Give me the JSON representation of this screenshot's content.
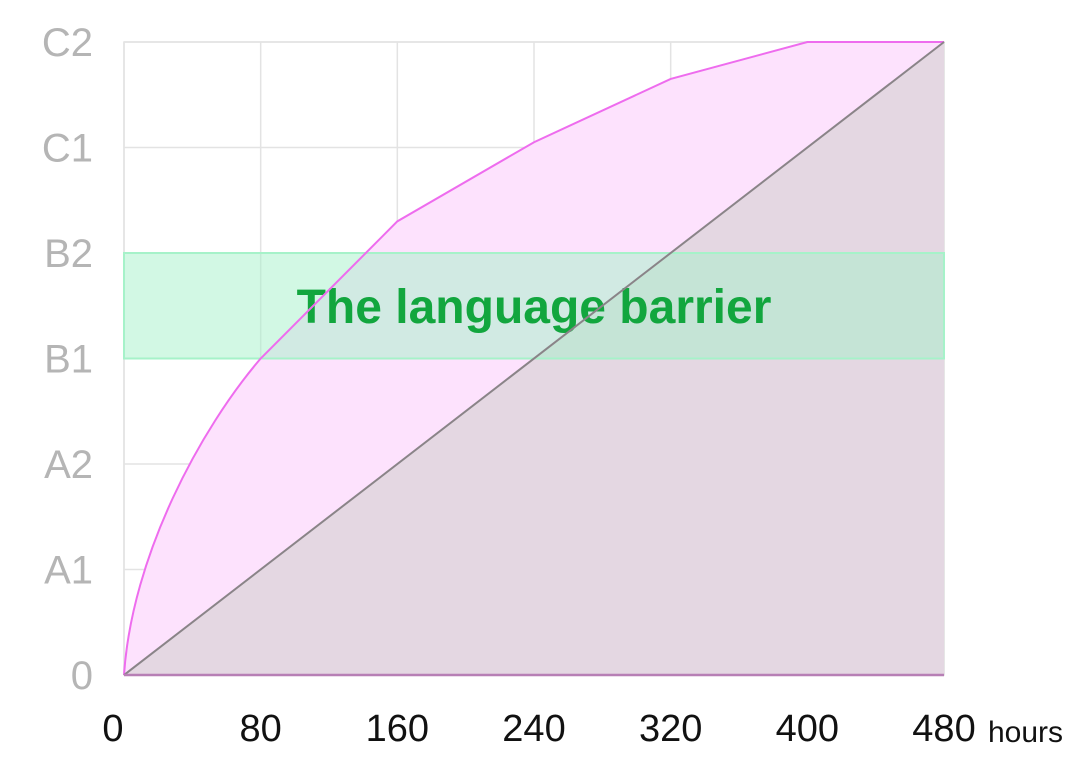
{
  "chart_data": {
    "type": "area",
    "title": "",
    "xlabel": "hours",
    "ylabel": "",
    "x_ticks": [
      "0",
      "80",
      "160",
      "240",
      "320",
      "400",
      "480"
    ],
    "y_ticks": [
      "0",
      "A1",
      "A2",
      "B1",
      "B2",
      "C1",
      "C2"
    ],
    "xlim": [
      0,
      480
    ],
    "ylim_levels": [
      "0",
      "C2"
    ],
    "grid": true,
    "series": [
      {
        "role": "upper-curve",
        "color": "#ee6cee",
        "fill": "#fde2fd",
        "x": [
          0,
          80,
          160,
          240,
          320,
          400,
          480
        ],
        "y": [
          0,
          3.0,
          4.3,
          5.05,
          5.65,
          6.0,
          6.0
        ]
      },
      {
        "role": "linear-baseline",
        "color": "#8a8488",
        "fill": "#e4d7e2",
        "x": [
          0,
          480
        ],
        "y": [
          0,
          6.0
        ]
      }
    ],
    "annotations": [
      {
        "type": "band",
        "text": "The language barrier",
        "y_from": 3,
        "y_to": 4,
        "color": "#a6f2c9",
        "text_color": "#12a63e"
      }
    ]
  }
}
